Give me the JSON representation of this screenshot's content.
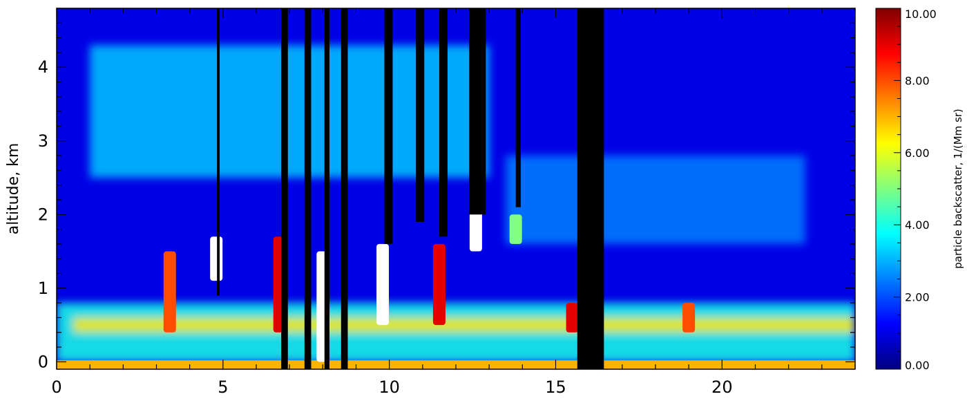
{
  "chart_data": {
    "type": "heatmap",
    "title": "",
    "xlabel": "",
    "ylabel": "altitude,  km",
    "xlim": [
      0,
      24
    ],
    "ylim": [
      -0.1,
      4.8
    ],
    "x_ticks": [
      0,
      5,
      10,
      15,
      20
    ],
    "y_ticks": [
      0,
      1,
      2,
      3,
      4
    ],
    "colorbar": {
      "label": "particle backscatter,  1/(Mm sr)",
      "range": [
        0,
        10
      ],
      "ticks": [
        "0.00",
        "2.00",
        "4.00",
        "6.00",
        "8.00",
        "10.00"
      ],
      "colormap": [
        "#00007f",
        "#0000ff",
        "#0080ff",
        "#00ffff",
        "#80ff80",
        "#ffff00",
        "#ff8000",
        "#ff0000",
        "#7f0000"
      ]
    },
    "missing_data_color": "#000000",
    "saturation_color": "#ffffff",
    "background_value": 1.0,
    "layers": [
      {
        "name": "elevated aerosol layer",
        "x": [
          1.0,
          13.0
        ],
        "y": [
          2.5,
          4.3
        ],
        "value": 3.2
      },
      {
        "name": "boundary layer",
        "x": [
          0,
          24
        ],
        "y": [
          0,
          0.8
        ],
        "value": 4.0
      },
      {
        "name": "aerosol band",
        "x": [
          0.5,
          24
        ],
        "y": [
          0.4,
          0.6
        ],
        "value": 6.5
      },
      {
        "name": "plume",
        "x": [
          13.5,
          22.5
        ],
        "y": [
          1.6,
          2.8
        ],
        "value": 2.5
      }
    ],
    "hotspots": [
      {
        "x": 3.4,
        "y": [
          0.4,
          1.5
        ],
        "value": 8
      },
      {
        "x": 4.8,
        "y": [
          1.1,
          1.7
        ],
        "value": 11
      },
      {
        "x": 6.7,
        "y": [
          0.4,
          1.7
        ],
        "value": 9
      },
      {
        "x": 8.0,
        "y": [
          0.0,
          1.5
        ],
        "value": 11
      },
      {
        "x": 9.8,
        "y": [
          0.5,
          1.6
        ],
        "value": 11
      },
      {
        "x": 11.5,
        "y": [
          0.5,
          1.6
        ],
        "value": 9
      },
      {
        "x": 12.6,
        "y": [
          1.5,
          2.1
        ],
        "value": 11
      },
      {
        "x": 13.8,
        "y": [
          1.6,
          2.0
        ],
        "value": 5
      },
      {
        "x": 15.5,
        "y": [
          0.4,
          0.8
        ],
        "value": 9
      },
      {
        "x": 19.0,
        "y": [
          0.4,
          0.8
        ],
        "value": 8
      }
    ],
    "missing_columns": [
      {
        "x": [
          4.82,
          4.9
        ],
        "y_from": 0.9
      },
      {
        "x": [
          6.75,
          6.95
        ],
        "y_from": -0.1
      },
      {
        "x": [
          7.45,
          7.65
        ],
        "y_from": -0.1
      },
      {
        "x": [
          8.05,
          8.2
        ],
        "y_from": -0.1
      },
      {
        "x": [
          8.55,
          8.75
        ],
        "y_from": -0.1
      },
      {
        "x": [
          9.85,
          10.1
        ],
        "y_from": 1.6
      },
      {
        "x": [
          10.8,
          11.05
        ],
        "y_from": 1.9
      },
      {
        "x": [
          11.5,
          11.75
        ],
        "y_from": 1.7
      },
      {
        "x": [
          12.4,
          12.9
        ],
        "y_from": 2.0
      },
      {
        "x": [
          13.8,
          13.95
        ],
        "y_from": 2.1
      },
      {
        "x": [
          15.65,
          16.45
        ],
        "y_from": -0.1
      }
    ]
  }
}
